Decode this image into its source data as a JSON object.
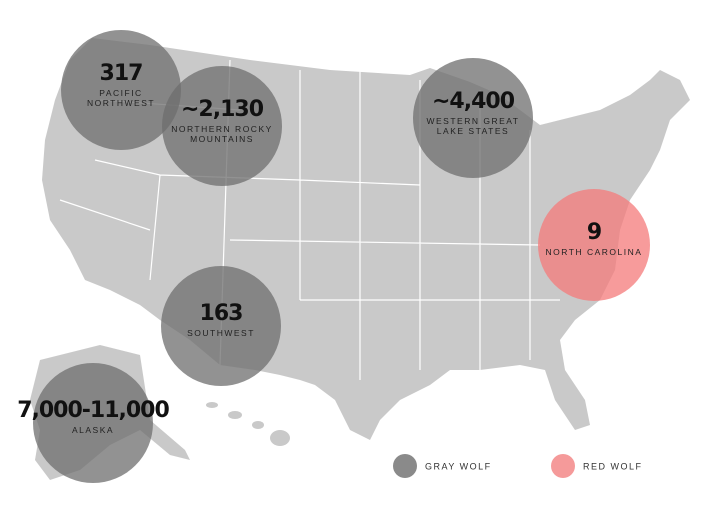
{
  "regions": [
    {
      "count": "317",
      "label": [
        "PACIFIC",
        "NORTHWEST"
      ],
      "color": "#6e6e6e"
    },
    {
      "count": "~2,130",
      "label": [
        "NORTHERN ROCKY",
        "MOUNTAINS"
      ],
      "color": "#6e6e6e"
    },
    {
      "count": "~4,400",
      "label": [
        "WESTERN GREAT",
        "LAKE STATES"
      ],
      "color": "#6e6e6e"
    },
    {
      "count": "9",
      "label": [
        "NORTH CAROLINA"
      ],
      "color": "#f47a7a"
    },
    {
      "count": "163",
      "label": [
        "SOUTHWEST"
      ],
      "color": "#6e6e6e"
    },
    {
      "count": "7,000-11,000",
      "label": [
        "ALASKA"
      ],
      "color": "#6e6e6e"
    }
  ],
  "legend": [
    {
      "name": "GRAY WOLF",
      "color": "#8a8a8a"
    },
    {
      "name": "RED WOLF",
      "color": "#f59a9a"
    }
  ]
}
